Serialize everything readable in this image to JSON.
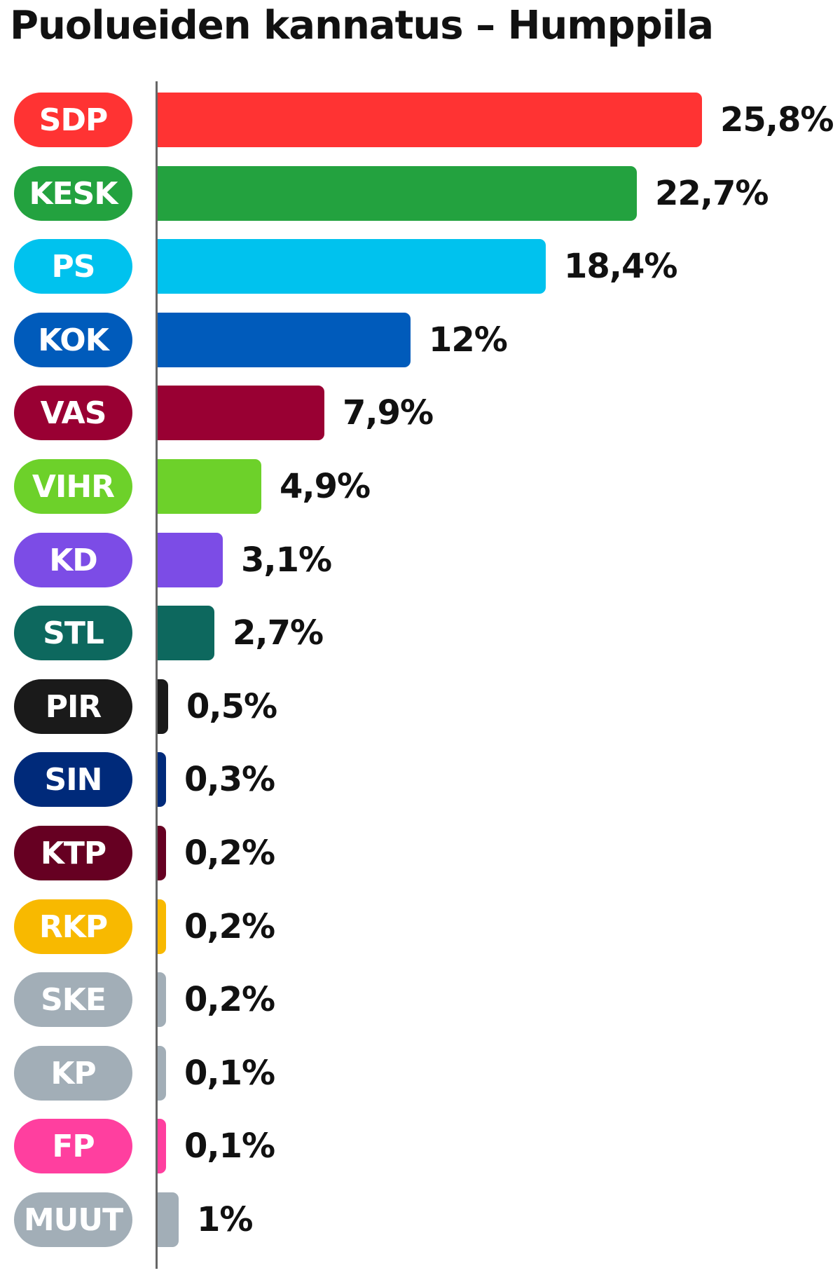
{
  "chart_data": {
    "type": "bar",
    "orientation": "horizontal",
    "title": "Puolueiden kannatus – Humppila",
    "categories": [
      "SDP",
      "KESK",
      "PS",
      "KOK",
      "VAS",
      "VIHR",
      "KD",
      "STL",
      "PIR",
      "SIN",
      "KTP",
      "RKP",
      "SKE",
      "KP",
      "FP",
      "MUUT"
    ],
    "values": [
      25.8,
      22.7,
      18.4,
      12,
      7.9,
      4.9,
      3.1,
      2.7,
      0.5,
      0.3,
      0.2,
      0.2,
      0.2,
      0.1,
      0.1,
      1
    ],
    "value_labels": [
      "25,8%",
      "22,7%",
      "18,4%",
      "12%",
      "7,9%",
      "4,9%",
      "3,1%",
      "2,7%",
      "0,5%",
      "0,3%",
      "0,2%",
      "0,2%",
      "0,2%",
      "0,1%",
      "0,1%",
      "1%"
    ],
    "colors": [
      "#ff3333",
      "#23a23f",
      "#00c2ee",
      "#005bbb",
      "#990033",
      "#6dd12a",
      "#7c4ce6",
      "#0d685e",
      "#1a1a1a",
      "#002a7a",
      "#660022",
      "#f8b900",
      "#a2aeb7",
      "#a2aeb7",
      "#ff3f9f",
      "#a2aeb7"
    ],
    "xlim": [
      0,
      25.8
    ],
    "grid": false,
    "legend": "none"
  }
}
